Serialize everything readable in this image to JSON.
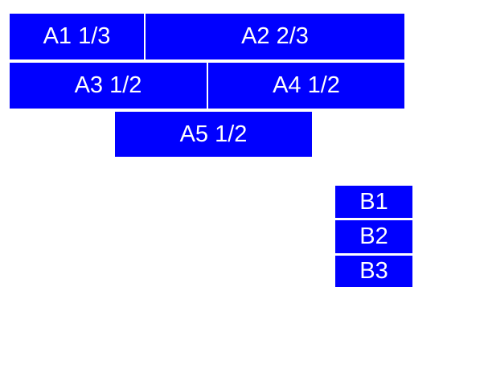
{
  "page": {
    "background_color": "#ffffff"
  },
  "colors": {
    "box_background": "#0000ff",
    "box_text": "#ffffff"
  },
  "boxes": {
    "a1": {
      "label": "A1 1/3"
    },
    "a2": {
      "label": "A2 2/3"
    },
    "a3": {
      "label": "A3 1/2"
    },
    "a4": {
      "label": "A4 1/2"
    },
    "a5": {
      "label": "A5 1/2"
    },
    "b1": {
      "label": "B1"
    },
    "b2": {
      "label": "B2"
    },
    "b3": {
      "label": "B3"
    }
  }
}
